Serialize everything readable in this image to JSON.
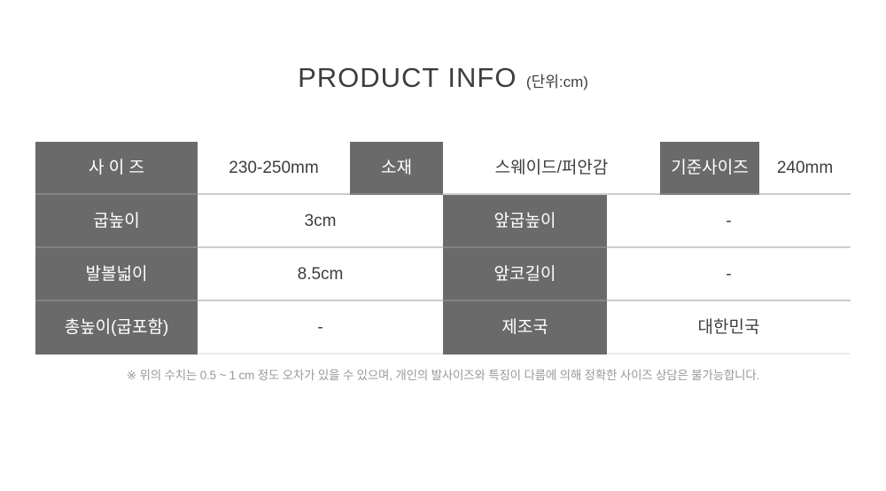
{
  "title": {
    "main": "PRODUCT INFO",
    "unit": "(단위:cm)"
  },
  "table": {
    "rows": [
      {
        "cells": [
          {
            "type": "label",
            "text": "사 이 즈"
          },
          {
            "type": "value",
            "text": "230-250mm"
          },
          {
            "type": "label",
            "text": "소재"
          },
          {
            "type": "value",
            "text": "스웨이드/퍼안감"
          },
          {
            "type": "label",
            "text": "기준사이즈"
          },
          {
            "type": "value",
            "text": "240mm"
          }
        ]
      },
      {
        "cells": [
          {
            "type": "label",
            "text": "굽높이"
          },
          {
            "type": "value",
            "text": "3cm"
          },
          {
            "type": "label",
            "text": "앞굽높이"
          },
          {
            "type": "value",
            "text": "-"
          }
        ]
      },
      {
        "cells": [
          {
            "type": "label",
            "text": "발볼넓이"
          },
          {
            "type": "value",
            "text": "8.5cm"
          },
          {
            "type": "label",
            "text": "앞코길이"
          },
          {
            "type": "value",
            "text": "-"
          }
        ]
      },
      {
        "cells": [
          {
            "type": "label",
            "text": "총높이(굽포함)"
          },
          {
            "type": "value",
            "text": "-"
          },
          {
            "type": "label",
            "text": "제조국"
          },
          {
            "type": "value",
            "text": "대한민국"
          }
        ]
      }
    ]
  },
  "footnote": "※ 위의 수치는 0.5 ~ 1 cm 정도 오차가 있을 수 있으며, 개인의 발사이즈와 특징이 다름에 의해 정확한 사이즈 상담은 불가능합니다.",
  "colors": {
    "header_bg": "#6a6a6a",
    "header_text": "#ffffff",
    "value_text": "#3d3d3d",
    "row_border_light": "#cccccc",
    "row_border_on_gray": "#838383",
    "footnote_text": "#999999"
  }
}
